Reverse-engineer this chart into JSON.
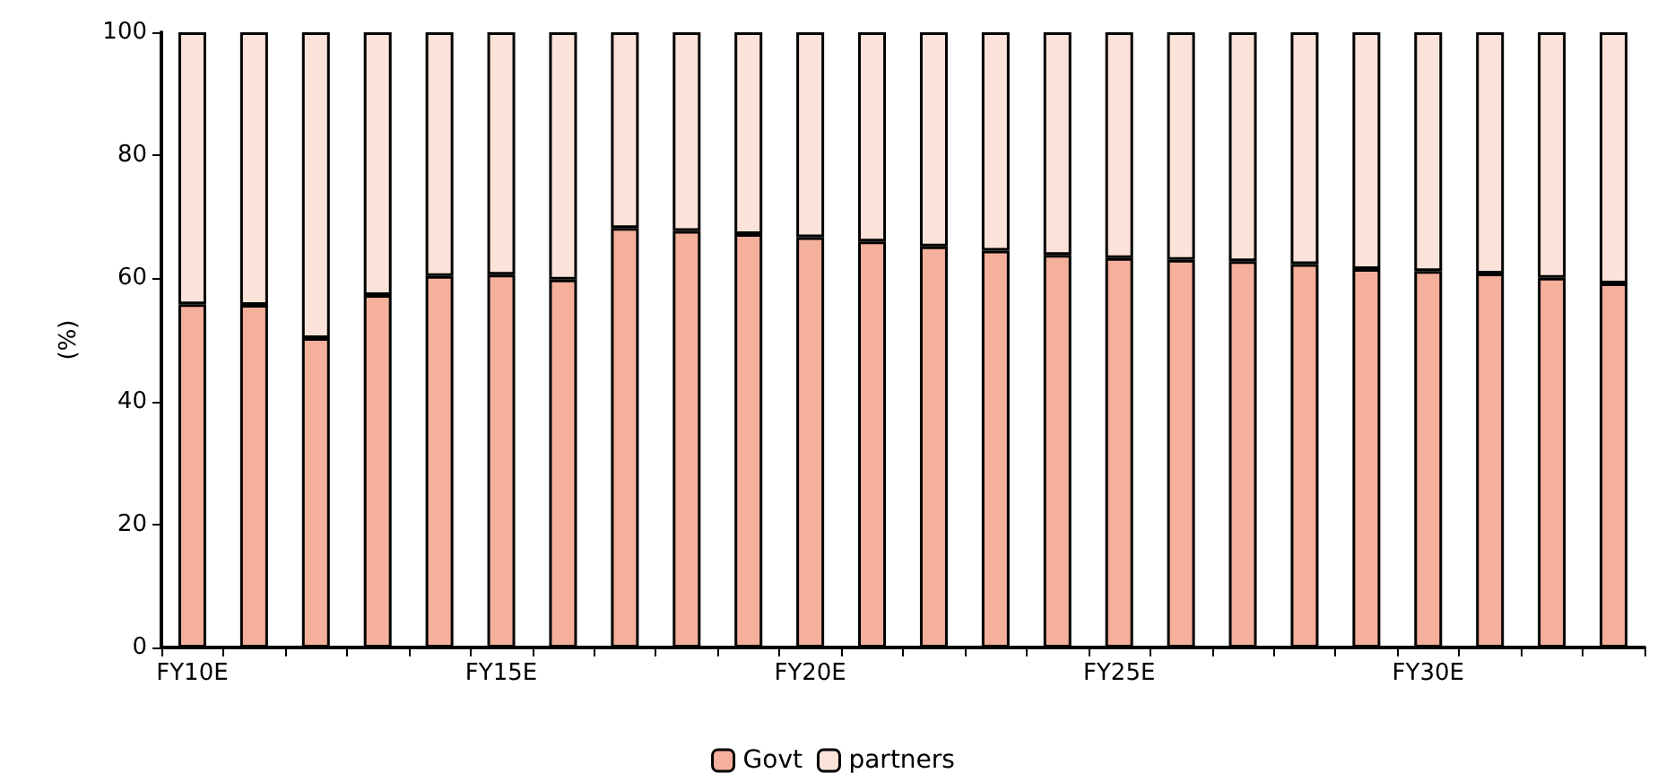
{
  "chart_data": {
    "type": "bar",
    "stacked": true,
    "ylabel": "(%)",
    "categories": [
      "FY10E",
      null,
      null,
      null,
      null,
      "FY15E",
      null,
      null,
      null,
      null,
      "FY20E",
      null,
      null,
      null,
      null,
      "FY25E",
      null,
      null,
      null,
      null,
      "FY30E",
      null,
      null,
      null
    ],
    "series": [
      {
        "name": "Govt",
        "color": "#f4b09b",
        "values": [
          55.8,
          55.7,
          50.3,
          57.3,
          60.4,
          60.6,
          59.8,
          68.2,
          67.7,
          67.2,
          66.7,
          66.0,
          65.2,
          64.5,
          63.8,
          63.3,
          63.0,
          62.8,
          62.3,
          61.5,
          61.2,
          60.8,
          60.1,
          59.2
        ]
      },
      {
        "name": "partners",
        "color": "#fce3d9",
        "values": [
          44.2,
          44.3,
          49.7,
          42.7,
          39.6,
          39.4,
          40.2,
          31.8,
          32.3,
          32.8,
          33.3,
          34.0,
          34.8,
          35.5,
          36.2,
          36.7,
          37.0,
          37.2,
          37.7,
          38.5,
          38.8,
          39.2,
          39.9,
          40.8
        ]
      }
    ],
    "ylim": [
      0,
      100
    ],
    "yticks": [
      0,
      20,
      40,
      60,
      80,
      100
    ],
    "grid": false,
    "legend": "bottom"
  }
}
